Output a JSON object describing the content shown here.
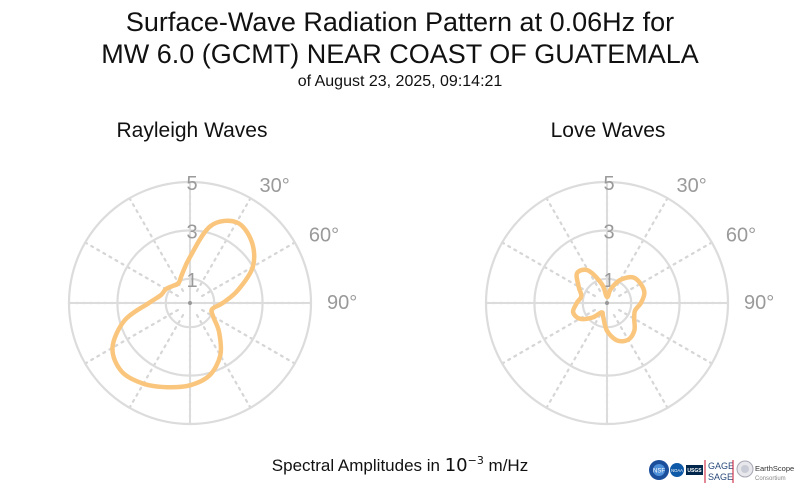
{
  "title": {
    "line1": "Surface-Wave Radiation Pattern at 0.06Hz for",
    "line2": "MW 6.0 (GCMT) NEAR COAST OF GUATEMALA",
    "line3": "of August 23, 2025, 09:14:21"
  },
  "footer": {
    "prefix": "Spectral Amplitudes in ",
    "base": "10",
    "exponent": "−3",
    "unit": " m/Hz"
  },
  "logos": {
    "nsf": "NSF",
    "noaa": "NOAA",
    "usgs": "USGS",
    "gage": "GAGE",
    "sage": "SAGE",
    "earthscope": "EarthScope",
    "consortium": "Consortium"
  },
  "chart_data": [
    {
      "type": "polar-line",
      "title": "Rayleigh Waves",
      "radial_ticks": [
        "1",
        "3",
        "5"
      ],
      "radial_range": [
        0,
        5
      ],
      "angle_tick_labels": [
        "30°",
        "60°",
        "90°"
      ],
      "series_color": "#fac67e",
      "azimuth_deg": [
        0,
        15,
        30,
        45,
        60,
        75,
        90,
        105,
        120,
        135,
        150,
        165,
        180,
        195,
        210,
        225,
        240,
        255,
        270,
        285,
        300,
        315,
        330,
        345,
        360
      ],
      "amplitude": [
        1.9,
        3.3,
        3.85,
        3.6,
        3.0,
        2.05,
        1.35,
        0.95,
        1.1,
        1.7,
        2.5,
        3.1,
        3.4,
        3.6,
        3.85,
        4.0,
        3.7,
        2.8,
        1.7,
        1.25,
        1.15,
        1.0,
        0.95,
        1.25,
        1.9
      ]
    },
    {
      "type": "polar-line",
      "title": "Love Waves",
      "radial_ticks": [
        "1",
        "3",
        "5"
      ],
      "radial_range": [
        0,
        5
      ],
      "angle_tick_labels": [
        "30°",
        "60°",
        "90°"
      ],
      "series_color": "#fac67e",
      "azimuth_deg": [
        0,
        15,
        30,
        45,
        60,
        75,
        90,
        105,
        120,
        135,
        150,
        165,
        180,
        195,
        210,
        225,
        240,
        255,
        270,
        285,
        300,
        315,
        330,
        345,
        360
      ],
      "amplitude": [
        0.25,
        0.6,
        1.1,
        1.5,
        1.6,
        1.6,
        1.4,
        1.2,
        1.3,
        1.6,
        1.75,
        1.6,
        1.15,
        0.6,
        0.45,
        0.85,
        1.3,
        1.45,
        1.25,
        1.1,
        1.35,
        1.75,
        1.55,
        0.8,
        0.25
      ]
    }
  ]
}
